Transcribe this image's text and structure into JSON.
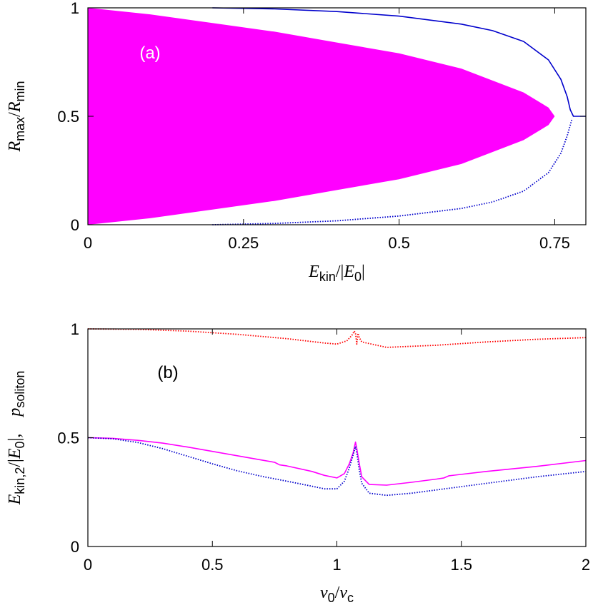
{
  "chart_data": [
    {
      "panel": "a",
      "type": "area",
      "panel_label": "(a)",
      "xlabel": {
        "var": "E",
        "sub": "kin",
        "rest": "/|",
        "var2": "E",
        "sub2": "0",
        "tail": "|"
      },
      "ylabel": {
        "var": "R",
        "sub": "max",
        "mid": "/",
        "var2": "R",
        "sub2": "min"
      },
      "xlim": [
        0,
        0.8
      ],
      "ylim": [
        0,
        1
      ],
      "xticks": [
        0,
        0.25,
        0.5,
        0.75
      ],
      "xtick_labels": [
        "0",
        "0.25",
        "0.5",
        "0.75"
      ],
      "yticks": [
        0,
        0.5,
        1
      ],
      "ytick_labels": [
        "0",
        "0.5",
        "1"
      ],
      "colors": {
        "fill": "#ff00ff",
        "upper": "#0000cc",
        "lower": "#0000cc"
      },
      "region": {
        "name": "filled region",
        "x": [
          0,
          0.1,
          0.2,
          0.3,
          0.4,
          0.5,
          0.6,
          0.7,
          0.74,
          0.75
        ],
        "upper": [
          1.0,
          0.97,
          0.93,
          0.89,
          0.84,
          0.79,
          0.72,
          0.61,
          0.54,
          0.5
        ],
        "lower": [
          0.0,
          0.03,
          0.07,
          0.11,
          0.16,
          0.21,
          0.28,
          0.39,
          0.46,
          0.5
        ]
      },
      "upper_curve": {
        "x": [
          0.2,
          0.3,
          0.4,
          0.5,
          0.6,
          0.65,
          0.7,
          0.74,
          0.76,
          0.77,
          0.775,
          0.78,
          0.8
        ],
        "y": [
          1.0,
          0.995,
          0.983,
          0.962,
          0.925,
          0.895,
          0.845,
          0.76,
          0.67,
          0.59,
          0.53,
          0.5,
          0.5
        ]
      },
      "lower_curve": {
        "x": [
          0.2,
          0.3,
          0.4,
          0.5,
          0.6,
          0.65,
          0.7,
          0.74,
          0.76,
          0.77,
          0.775,
          0.778
        ],
        "y": [
          0.0,
          0.006,
          0.018,
          0.04,
          0.075,
          0.105,
          0.155,
          0.24,
          0.33,
          0.41,
          0.46,
          0.49
        ]
      }
    },
    {
      "panel": "b",
      "type": "line",
      "panel_label": "(b)",
      "xlabel": {
        "var": "v",
        "sub": "0",
        "rest": "/",
        "var2": "v",
        "sub2": "c"
      },
      "ylabel": {
        "var": "E",
        "sub": "kin,2",
        "mid": "/|",
        "var2": "E",
        "sub2": "0",
        "tail": "|,",
        "var3": "p",
        "sub3": "soliton"
      },
      "xlim": [
        0,
        2
      ],
      "ylim": [
        0,
        1
      ],
      "xticks": [
        0,
        0.5,
        1,
        1.5,
        2
      ],
      "xtick_labels": [
        "0",
        "0.5",
        "1",
        "1.5",
        "2"
      ],
      "yticks": [
        0,
        0.5,
        1
      ],
      "ytick_labels": [
        "0",
        "0.5",
        "1"
      ],
      "series": [
        {
          "color": "#ff0000",
          "style": "dotted",
          "x": [
            0,
            0.2,
            0.4,
            0.6,
            0.8,
            0.95,
            1.0,
            1.04,
            1.06,
            1.07,
            1.075,
            1.08,
            1.085,
            1.09,
            1.1,
            1.2,
            1.4,
            1.6,
            1.8,
            2.0
          ],
          "y": [
            1.0,
            0.998,
            0.99,
            0.975,
            0.955,
            0.935,
            0.93,
            0.945,
            0.97,
            0.99,
            0.98,
            0.93,
            0.98,
            0.96,
            0.94,
            0.915,
            0.925,
            0.94,
            0.952,
            0.96
          ]
        },
        {
          "color": "#ff00ff",
          "style": "solid",
          "x": [
            0,
            0.1,
            0.2,
            0.3,
            0.4,
            0.5,
            0.6,
            0.7,
            0.75,
            0.77,
            0.8,
            0.9,
            0.95,
            1.0,
            1.03,
            1.05,
            1.065,
            1.075,
            1.08,
            1.09,
            1.1,
            1.13,
            1.2,
            1.3,
            1.4,
            1.43,
            1.45,
            1.6,
            1.8,
            2.0
          ],
          "y": [
            0.5,
            0.497,
            0.488,
            0.475,
            0.457,
            0.437,
            0.417,
            0.397,
            0.387,
            0.375,
            0.37,
            0.345,
            0.327,
            0.315,
            0.335,
            0.38,
            0.43,
            0.48,
            0.45,
            0.38,
            0.32,
            0.285,
            0.282,
            0.295,
            0.31,
            0.315,
            0.325,
            0.345,
            0.368,
            0.395
          ]
        },
        {
          "color": "#0000cc",
          "style": "dotted",
          "x": [
            0,
            0.1,
            0.2,
            0.3,
            0.4,
            0.5,
            0.6,
            0.7,
            0.8,
            0.9,
            0.95,
            1.0,
            1.03,
            1.05,
            1.065,
            1.075,
            1.08,
            1.09,
            1.1,
            1.13,
            1.2,
            1.3,
            1.4,
            1.5,
            1.6,
            1.8,
            2.0
          ],
          "y": [
            0.5,
            0.495,
            0.478,
            0.45,
            0.415,
            0.38,
            0.348,
            0.322,
            0.3,
            0.277,
            0.265,
            0.265,
            0.3,
            0.36,
            0.42,
            0.46,
            0.43,
            0.35,
            0.29,
            0.245,
            0.235,
            0.245,
            0.26,
            0.275,
            0.29,
            0.32,
            0.345
          ]
        }
      ]
    }
  ]
}
